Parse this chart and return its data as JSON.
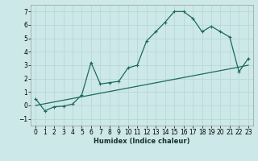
{
  "title": "",
  "xlabel": "Humidex (Indice chaleur)",
  "ylabel": "",
  "bg_color": "#cde8e8",
  "grid_color": "#b8d8d8",
  "line_color": "#1a6b5a",
  "x_values": [
    0,
    1,
    2,
    3,
    4,
    5,
    6,
    7,
    8,
    9,
    10,
    11,
    12,
    13,
    14,
    15,
    16,
    17,
    18,
    19,
    20,
    21,
    22,
    23
  ],
  "y_main": [
    0.5,
    -0.4,
    -0.1,
    -0.05,
    0.1,
    0.8,
    3.2,
    1.6,
    1.7,
    1.8,
    2.8,
    3.0,
    4.8,
    5.5,
    6.2,
    7.0,
    7.0,
    6.5,
    5.5,
    5.9,
    5.5,
    5.1,
    2.5,
    3.5
  ],
  "y_linear": [
    0.0,
    0.13,
    0.26,
    0.39,
    0.52,
    0.65,
    0.78,
    0.91,
    1.04,
    1.17,
    1.3,
    1.43,
    1.56,
    1.69,
    1.82,
    1.95,
    2.08,
    2.21,
    2.34,
    2.47,
    2.6,
    2.73,
    2.86,
    3.0
  ],
  "ylim": [
    -1.5,
    7.5
  ],
  "xlim": [
    -0.5,
    23.5
  ],
  "yticks": [
    -1,
    0,
    1,
    2,
    3,
    4,
    5,
    6,
    7
  ],
  "xticks": [
    0,
    1,
    2,
    3,
    4,
    5,
    6,
    7,
    8,
    9,
    10,
    11,
    12,
    13,
    14,
    15,
    16,
    17,
    18,
    19,
    20,
    21,
    22,
    23
  ],
  "xlabel_fontsize": 6.0,
  "tick_fontsize": 5.5,
  "linewidth": 0.9,
  "markersize": 3.0
}
